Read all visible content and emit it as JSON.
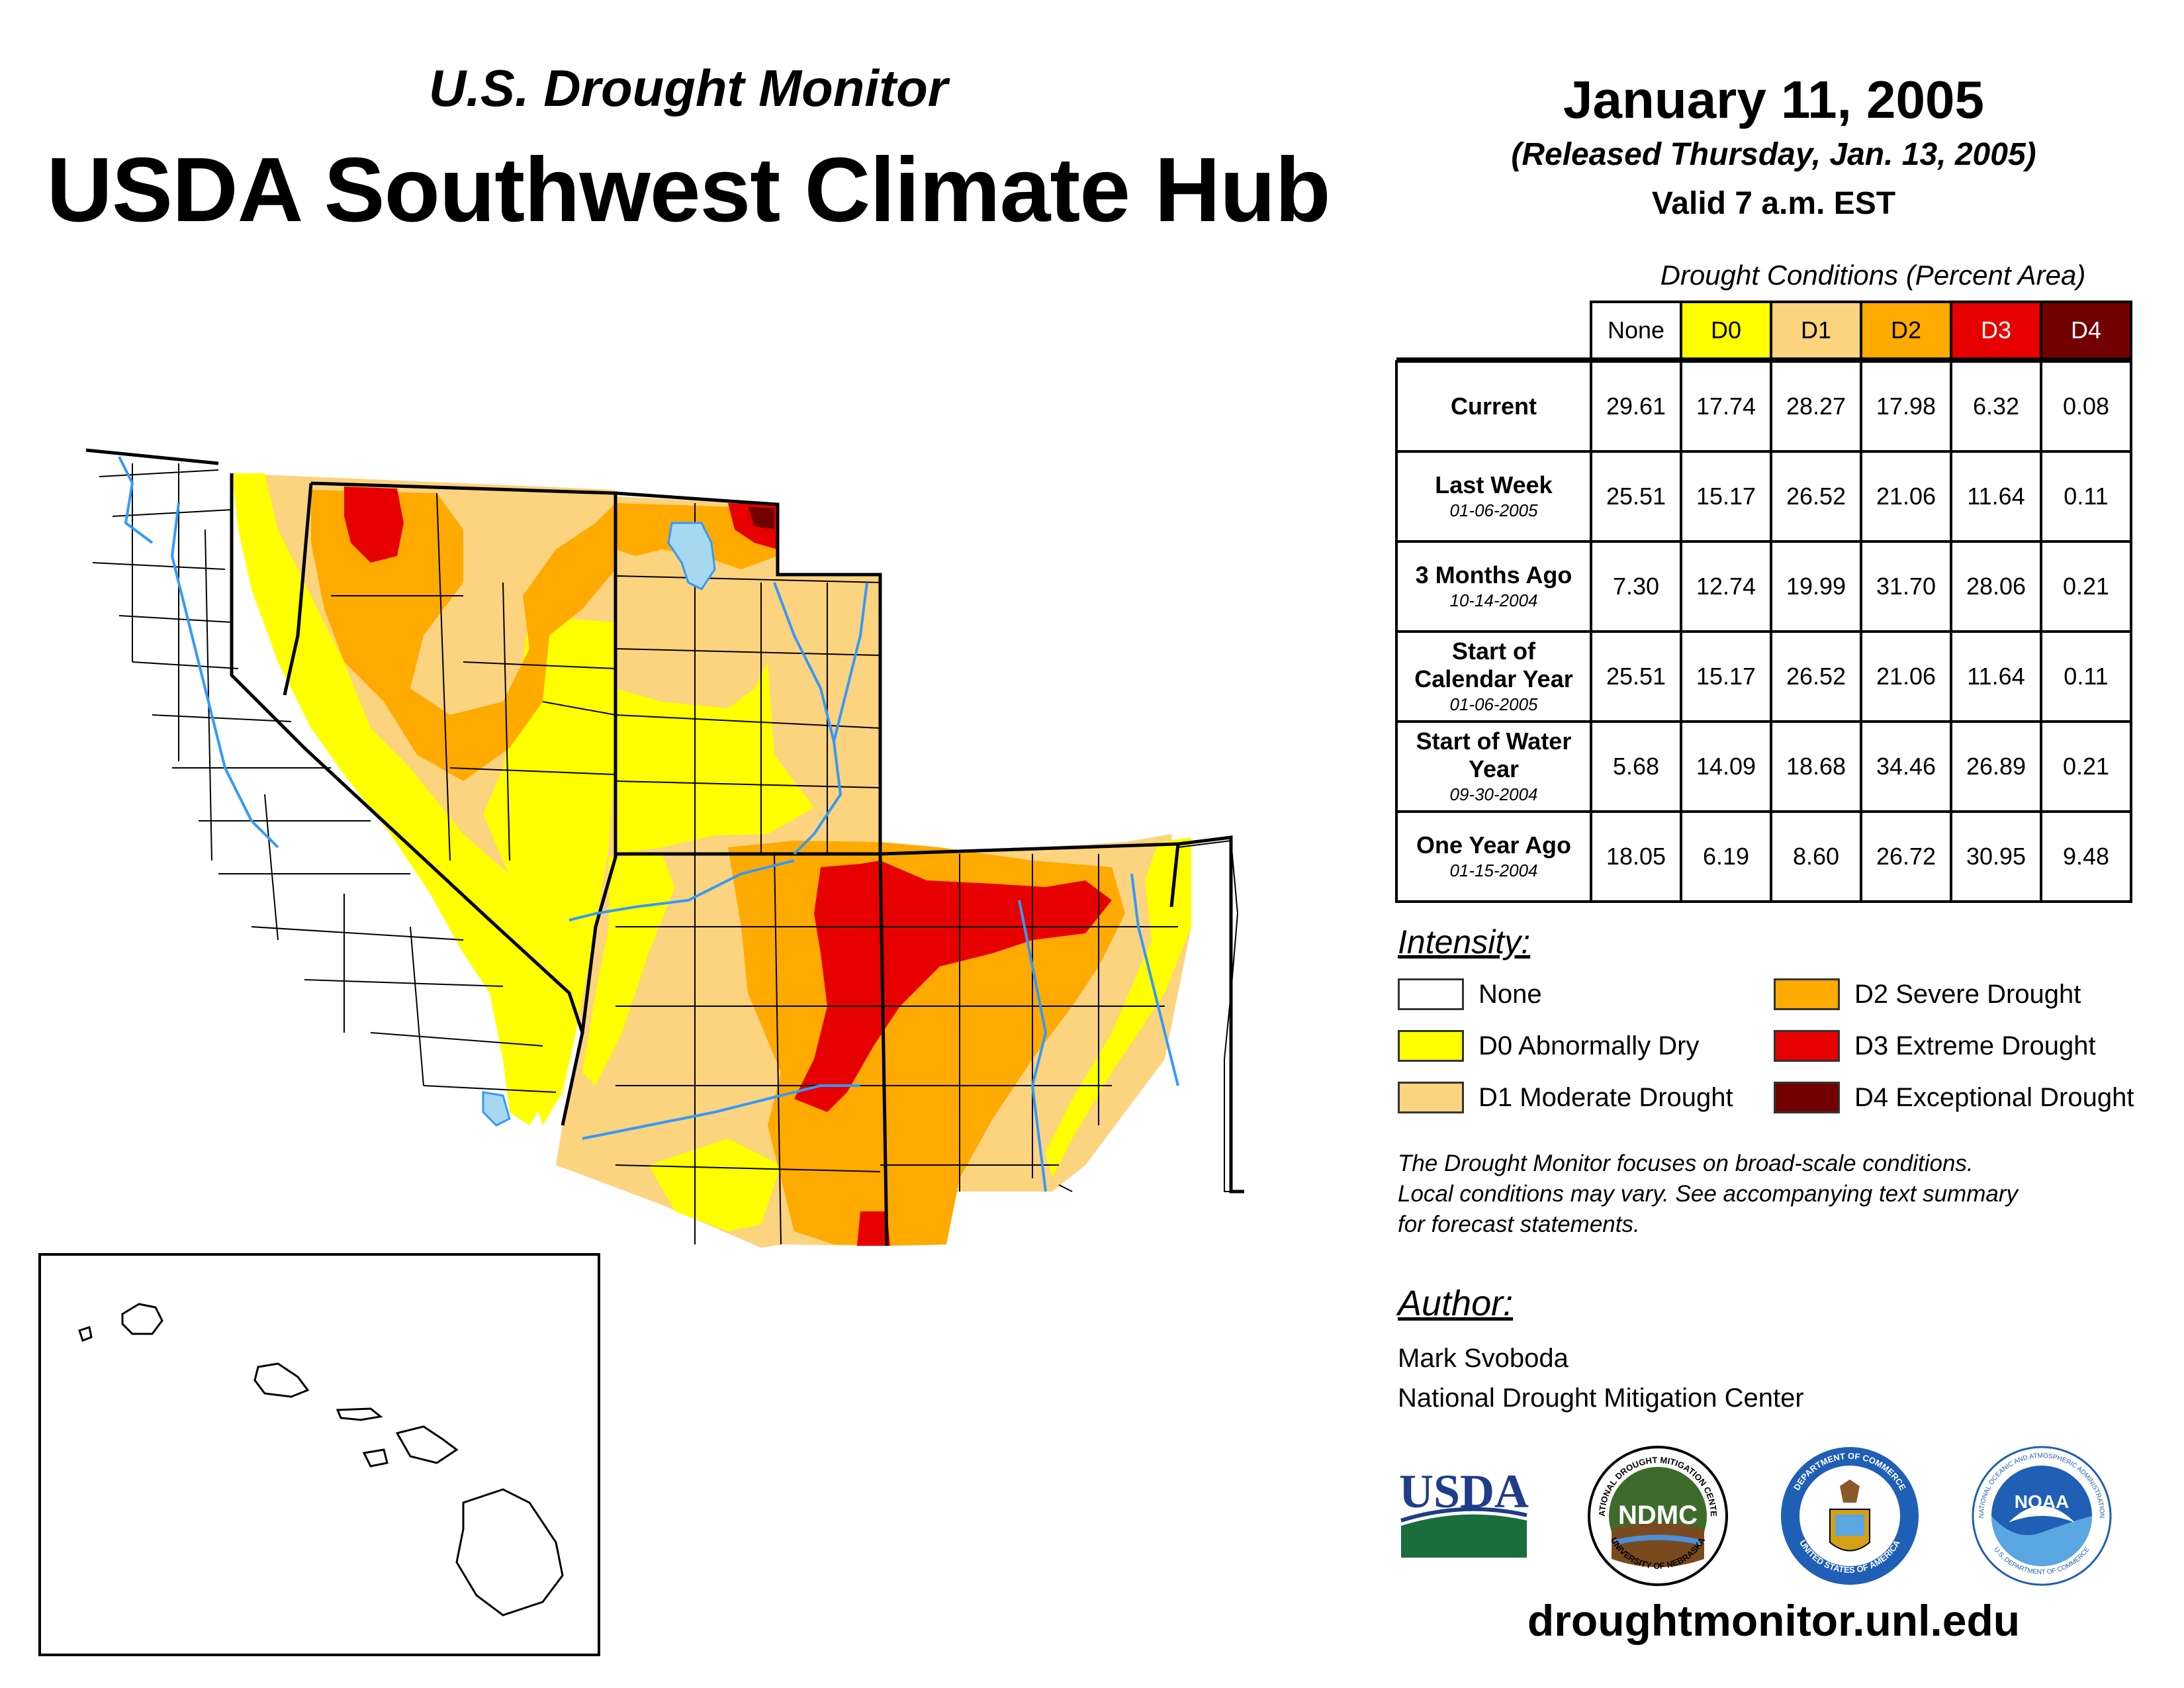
{
  "header": {
    "subtitle": "U.S. Drought Monitor",
    "title": "USDA Southwest Climate Hub",
    "date": "January 11, 2005",
    "released": "(Released Thursday, Jan. 13, 2005)",
    "valid": "Valid 7 a.m. EST"
  },
  "table": {
    "caption": "Drought Conditions (Percent Area)",
    "columns": [
      "None",
      "D0",
      "D1",
      "D2",
      "D3",
      "D4"
    ],
    "column_colors": [
      "#ffffff",
      "#ffff00",
      "#fcd37f",
      "#ffaa00",
      "#e60000",
      "#730000"
    ],
    "rows": [
      {
        "label": "Current",
        "date": "",
        "values": [
          "29.61",
          "17.74",
          "28.27",
          "17.98",
          "6.32",
          "0.08"
        ]
      },
      {
        "label": "Last Week",
        "date": "01-06-2005",
        "values": [
          "25.51",
          "15.17",
          "26.52",
          "21.06",
          "11.64",
          "0.11"
        ]
      },
      {
        "label": "3 Months Ago",
        "date": "10-14-2004",
        "values": [
          "7.30",
          "12.74",
          "19.99",
          "31.70",
          "28.06",
          "0.21"
        ]
      },
      {
        "label": "Start of Calendar Year",
        "date": "01-06-2005",
        "values": [
          "25.51",
          "15.17",
          "26.52",
          "21.06",
          "11.64",
          "0.11"
        ]
      },
      {
        "label": "Start of Water Year",
        "date": "09-30-2004",
        "values": [
          "5.68",
          "14.09",
          "18.68",
          "34.46",
          "26.89",
          "0.21"
        ]
      },
      {
        "label": "One Year Ago",
        "date": "01-15-2004",
        "values": [
          "18.05",
          "6.19",
          "8.60",
          "26.72",
          "30.95",
          "9.48"
        ]
      }
    ]
  },
  "legend": {
    "title": "Intensity:",
    "items": [
      {
        "label": "None",
        "color": "#ffffff"
      },
      {
        "label": "D0 Abnormally Dry",
        "color": "#ffff00"
      },
      {
        "label": "D1 Moderate Drought",
        "color": "#fcd37f"
      },
      {
        "label": "D2 Severe Drought",
        "color": "#ffaa00"
      },
      {
        "label": "D3 Extreme Drought",
        "color": "#e60000"
      },
      {
        "label": "D4 Exceptional Drought",
        "color": "#730000"
      }
    ]
  },
  "note": {
    "line1": "The Drought Monitor focuses on broad-scale conditions.",
    "line2": "Local conditions may vary. See accompanying text summary",
    "line3": "for forecast statements."
  },
  "author": {
    "title": "Author:",
    "name": "Mark Svoboda",
    "org": "National Drought Mitigation Center"
  },
  "logos": {
    "usda": "USDA",
    "ndmc": "NDMC",
    "ndmc_ring": "NATIONAL DROUGHT MITIGATION CENTER",
    "ndmc_ring_bottom": "UNIVERSITY OF NEBRASKA",
    "doc_ring": "DEPARTMENT OF COMMERCE",
    "doc_ring_bottom": "UNITED STATES OF AMERICA",
    "noaa": "NOAA",
    "noaa_ring": "NATIONAL OCEANIC AND ATMOSPHERIC ADMINISTRATION",
    "noaa_ring_bottom": "U.S. DEPARTMENT OF COMMERCE"
  },
  "footer": {
    "url": "droughtmonitor.unl.edu"
  },
  "map": {
    "regions": [
      "California",
      "Nevada",
      "Utah",
      "Arizona",
      "New Mexico",
      "Hawaii"
    ],
    "colors": {
      "none": "#ffffff",
      "d0": "#ffff00",
      "d1": "#fcd37f",
      "d2": "#ffaa00",
      "d3": "#e60000",
      "d4": "#730000",
      "water": "#3399ff",
      "lake": "#a6d8f0"
    }
  }
}
